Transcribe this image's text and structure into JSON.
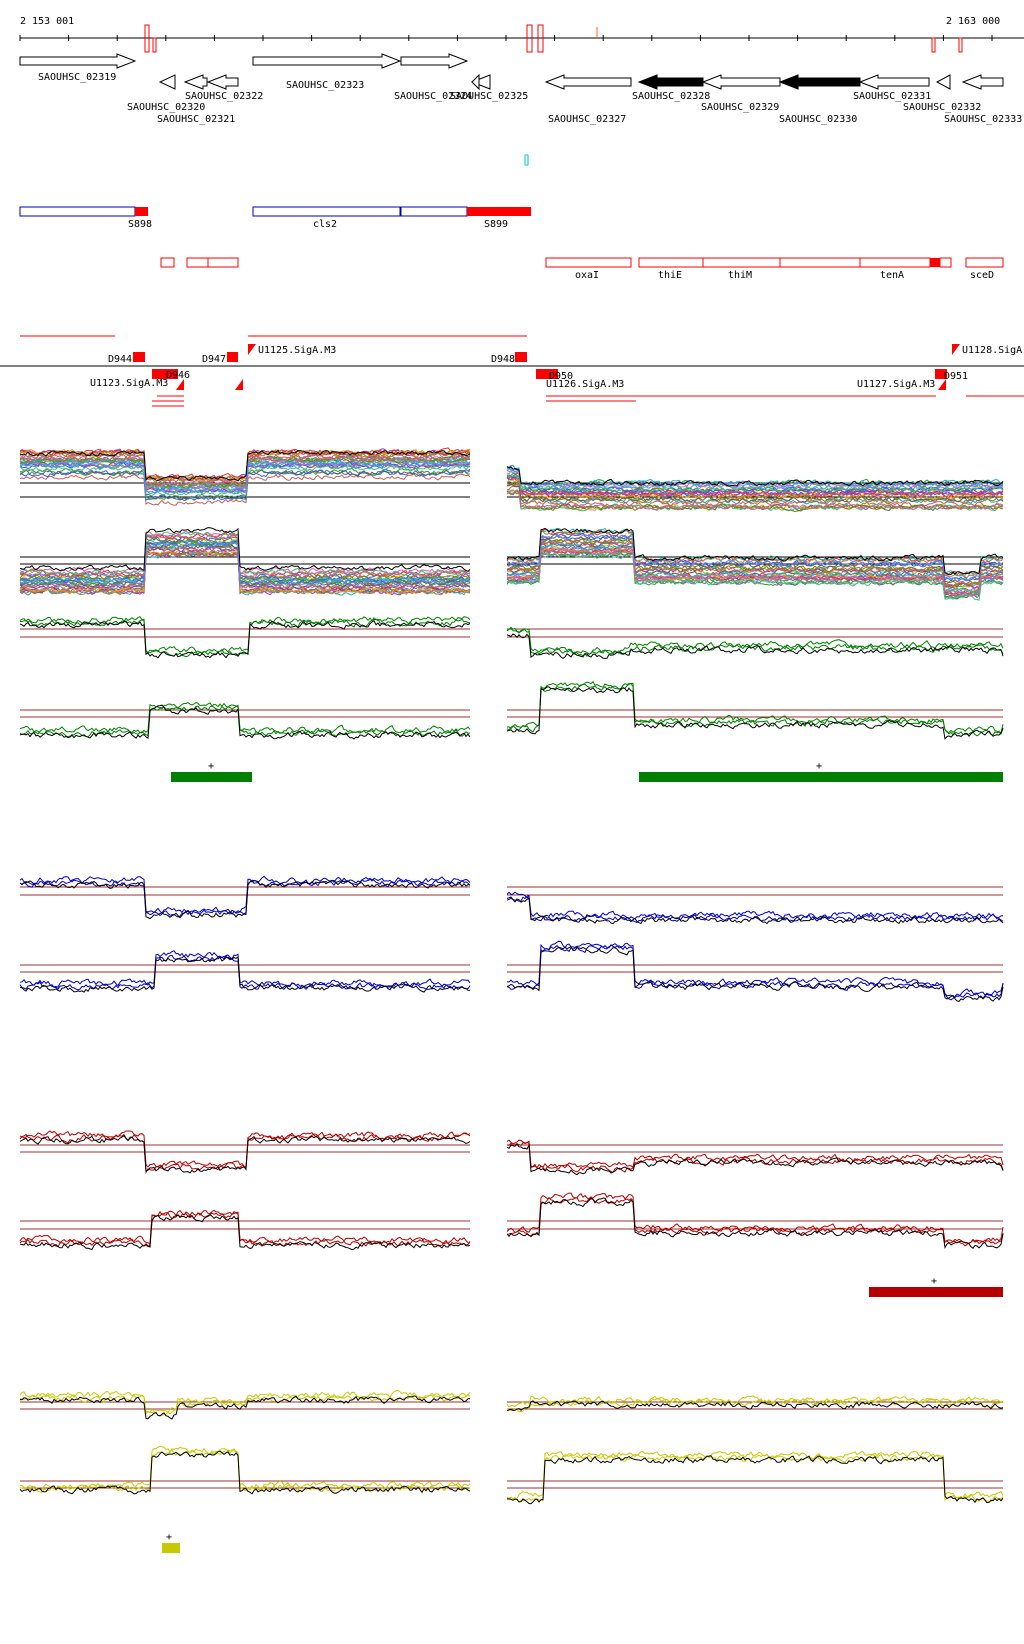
{
  "coords": {
    "start": "2 153 001",
    "end": "2 163 000"
  },
  "colors": {
    "red": "#ff0000",
    "dark_red": "#b40000",
    "blue": "#0000c8",
    "green": "#008000",
    "yellow": "#c8c800",
    "cyan": "#00c8c8",
    "navy": "#0000aa"
  },
  "genes": [
    {
      "label": "SAOUHSC_02319",
      "strand": "+"
    },
    {
      "label": "SAOUHSC_02320",
      "strand": "-"
    },
    {
      "label": "SAOUHSC_02321",
      "strand": "-"
    },
    {
      "label": "SAOUHSC_02322",
      "strand": "-"
    },
    {
      "label": "SAOUHSC_02323",
      "strand": "+"
    },
    {
      "label": "SAOUHSC_02324",
      "strand": "+"
    },
    {
      "label": "SAOUHSC_02325",
      "strand": "-"
    },
    {
      "label": "SAOUHSC_02327",
      "strand": "-"
    },
    {
      "label": "SAOUHSC_02328",
      "strand": "-",
      "filled": true
    },
    {
      "label": "SAOUHSC_02329",
      "strand": "-"
    },
    {
      "label": "SAOUHSC_02330",
      "strand": "-",
      "filled": true
    },
    {
      "label": "SAOUHSC_02331",
      "strand": "-"
    },
    {
      "label": "SAOUHSC_02332",
      "strand": "-"
    },
    {
      "label": "SAOUHSC_02333",
      "strand": "-"
    }
  ],
  "features": {
    "s_labels": [
      "S898",
      "cls2",
      "S899"
    ],
    "operon_labels": [
      "oxaI",
      "thiE",
      "thiM",
      "tenA",
      "sceD"
    ]
  },
  "transcription": {
    "d_labels": [
      "D944",
      "D947",
      "D948",
      "D951"
    ],
    "u_labels": [
      "U1125.SigA.M3",
      "U1128.SigA.",
      "U1126.SigA.M3",
      "U1127.SigA.M3"
    ],
    "overlap_labels": [
      "U1123.SigA.M3",
      "D946",
      "D950"
    ]
  },
  "condition_marks": {
    "green": "+",
    "red": "+",
    "yellow": "+"
  }
}
